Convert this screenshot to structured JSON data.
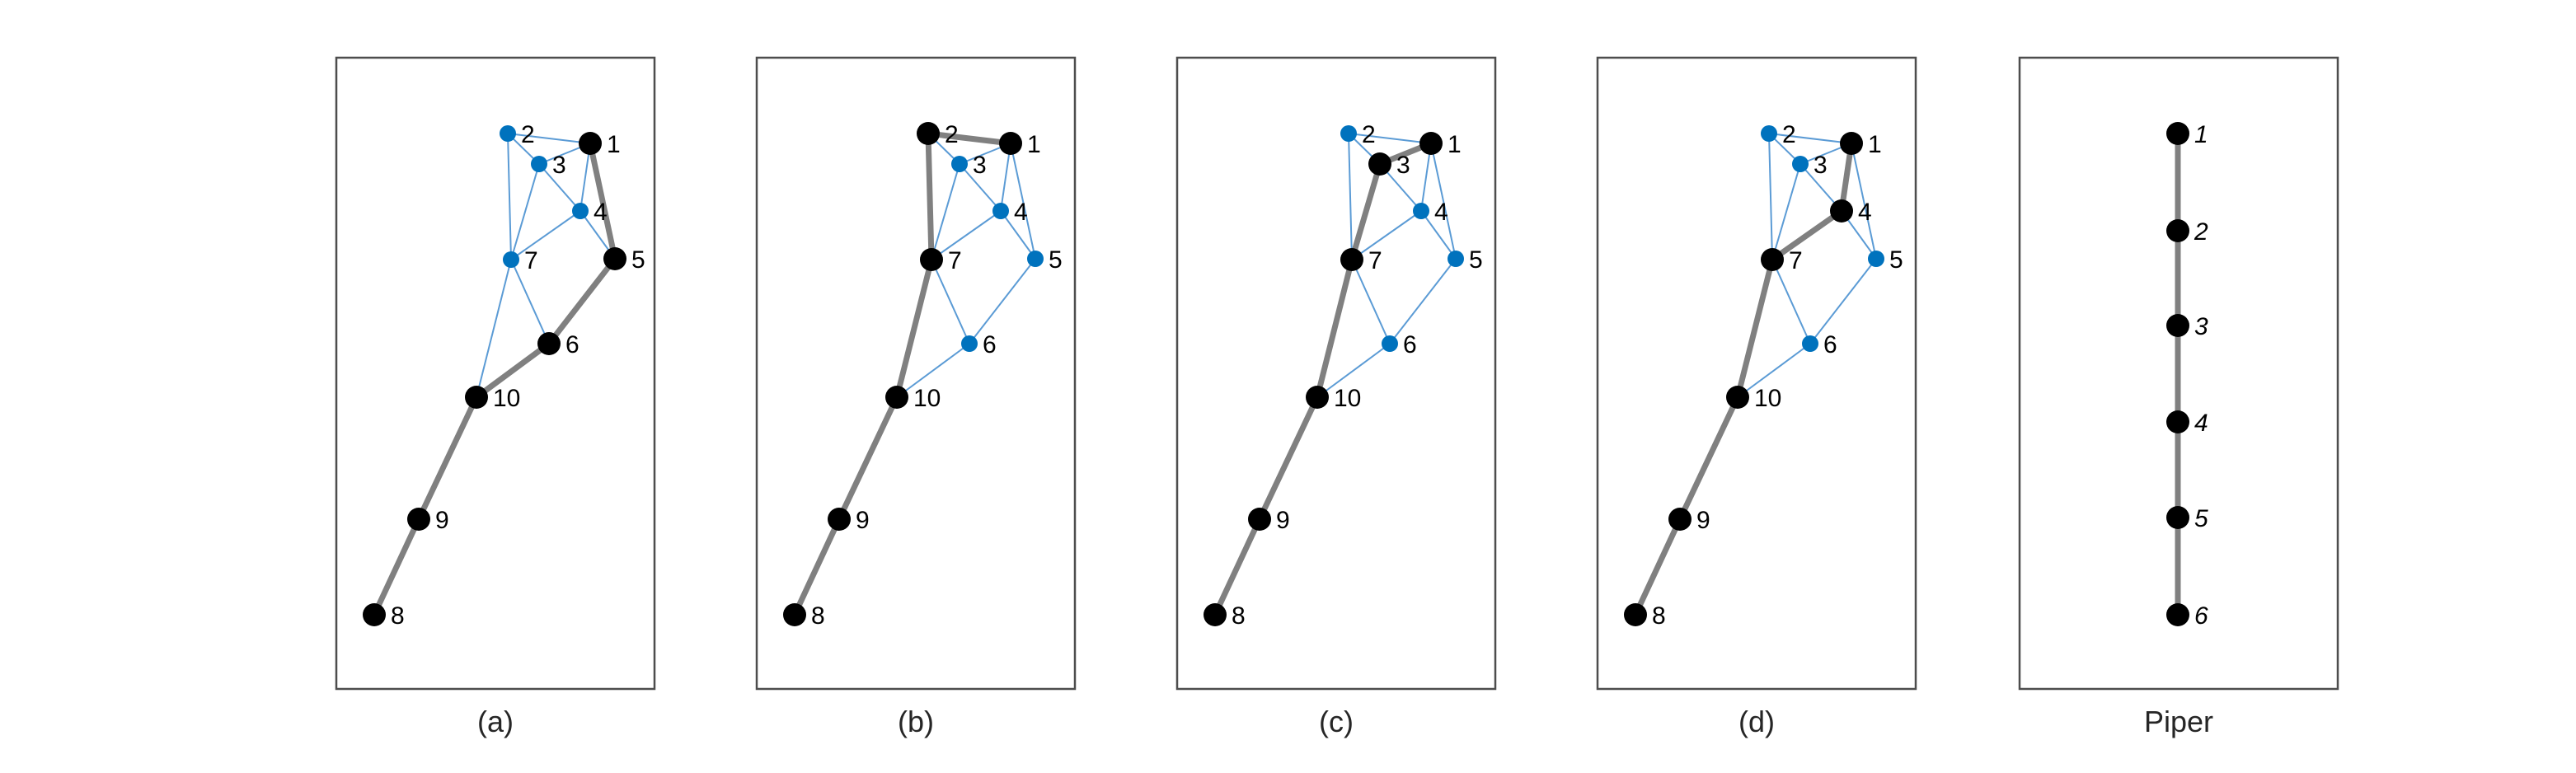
{
  "panels": [
    {
      "caption": "(a)",
      "graph": "g1",
      "highlight_path": [
        "1",
        "5",
        "6",
        "10",
        "9",
        "8"
      ]
    },
    {
      "caption": "(b)",
      "graph": "g1",
      "highlight_path": [
        "1",
        "2",
        "7",
        "10",
        "9",
        "8"
      ]
    },
    {
      "caption": "(c)",
      "graph": "g1",
      "highlight_path": [
        "1",
        "3",
        "7",
        "10",
        "9",
        "8"
      ]
    },
    {
      "caption": "(d)",
      "graph": "g1",
      "highlight_path": [
        "1",
        "4",
        "7",
        "10",
        "9",
        "8"
      ]
    },
    {
      "caption": "Piper",
      "graph": "chain",
      "italic_labels": true,
      "highlight_path": [
        "1",
        "2",
        "3",
        "4",
        "5",
        "6"
      ]
    }
  ],
  "graphs": {
    "g1": {
      "nodes": [
        "1",
        "2",
        "3",
        "4",
        "5",
        "6",
        "7",
        "8",
        "9",
        "10"
      ],
      "edges": [
        [
          "2",
          "1"
        ],
        [
          "2",
          "3"
        ],
        [
          "2",
          "7"
        ],
        [
          "3",
          "1"
        ],
        [
          "3",
          "4"
        ],
        [
          "3",
          "7"
        ],
        [
          "1",
          "4"
        ],
        [
          "1",
          "5"
        ],
        [
          "4",
          "5"
        ],
        [
          "4",
          "7"
        ],
        [
          "5",
          "6"
        ],
        [
          "7",
          "6"
        ],
        [
          "7",
          "10"
        ],
        [
          "6",
          "10"
        ],
        [
          "10",
          "9"
        ],
        [
          "9",
          "8"
        ]
      ]
    },
    "chain": {
      "nodes": [
        "1",
        "2",
        "3",
        "4",
        "5",
        "6"
      ],
      "edges": [
        [
          "1",
          "2"
        ],
        [
          "2",
          "3"
        ],
        [
          "3",
          "4"
        ],
        [
          "4",
          "5"
        ],
        [
          "5",
          "6"
        ]
      ]
    }
  },
  "colors": {
    "highlight_edge": "#808080",
    "highlight_node": "#000000",
    "other_edge": "#5b9bd5",
    "other_node": "#0072bd",
    "frame": "#4d4d4d"
  }
}
